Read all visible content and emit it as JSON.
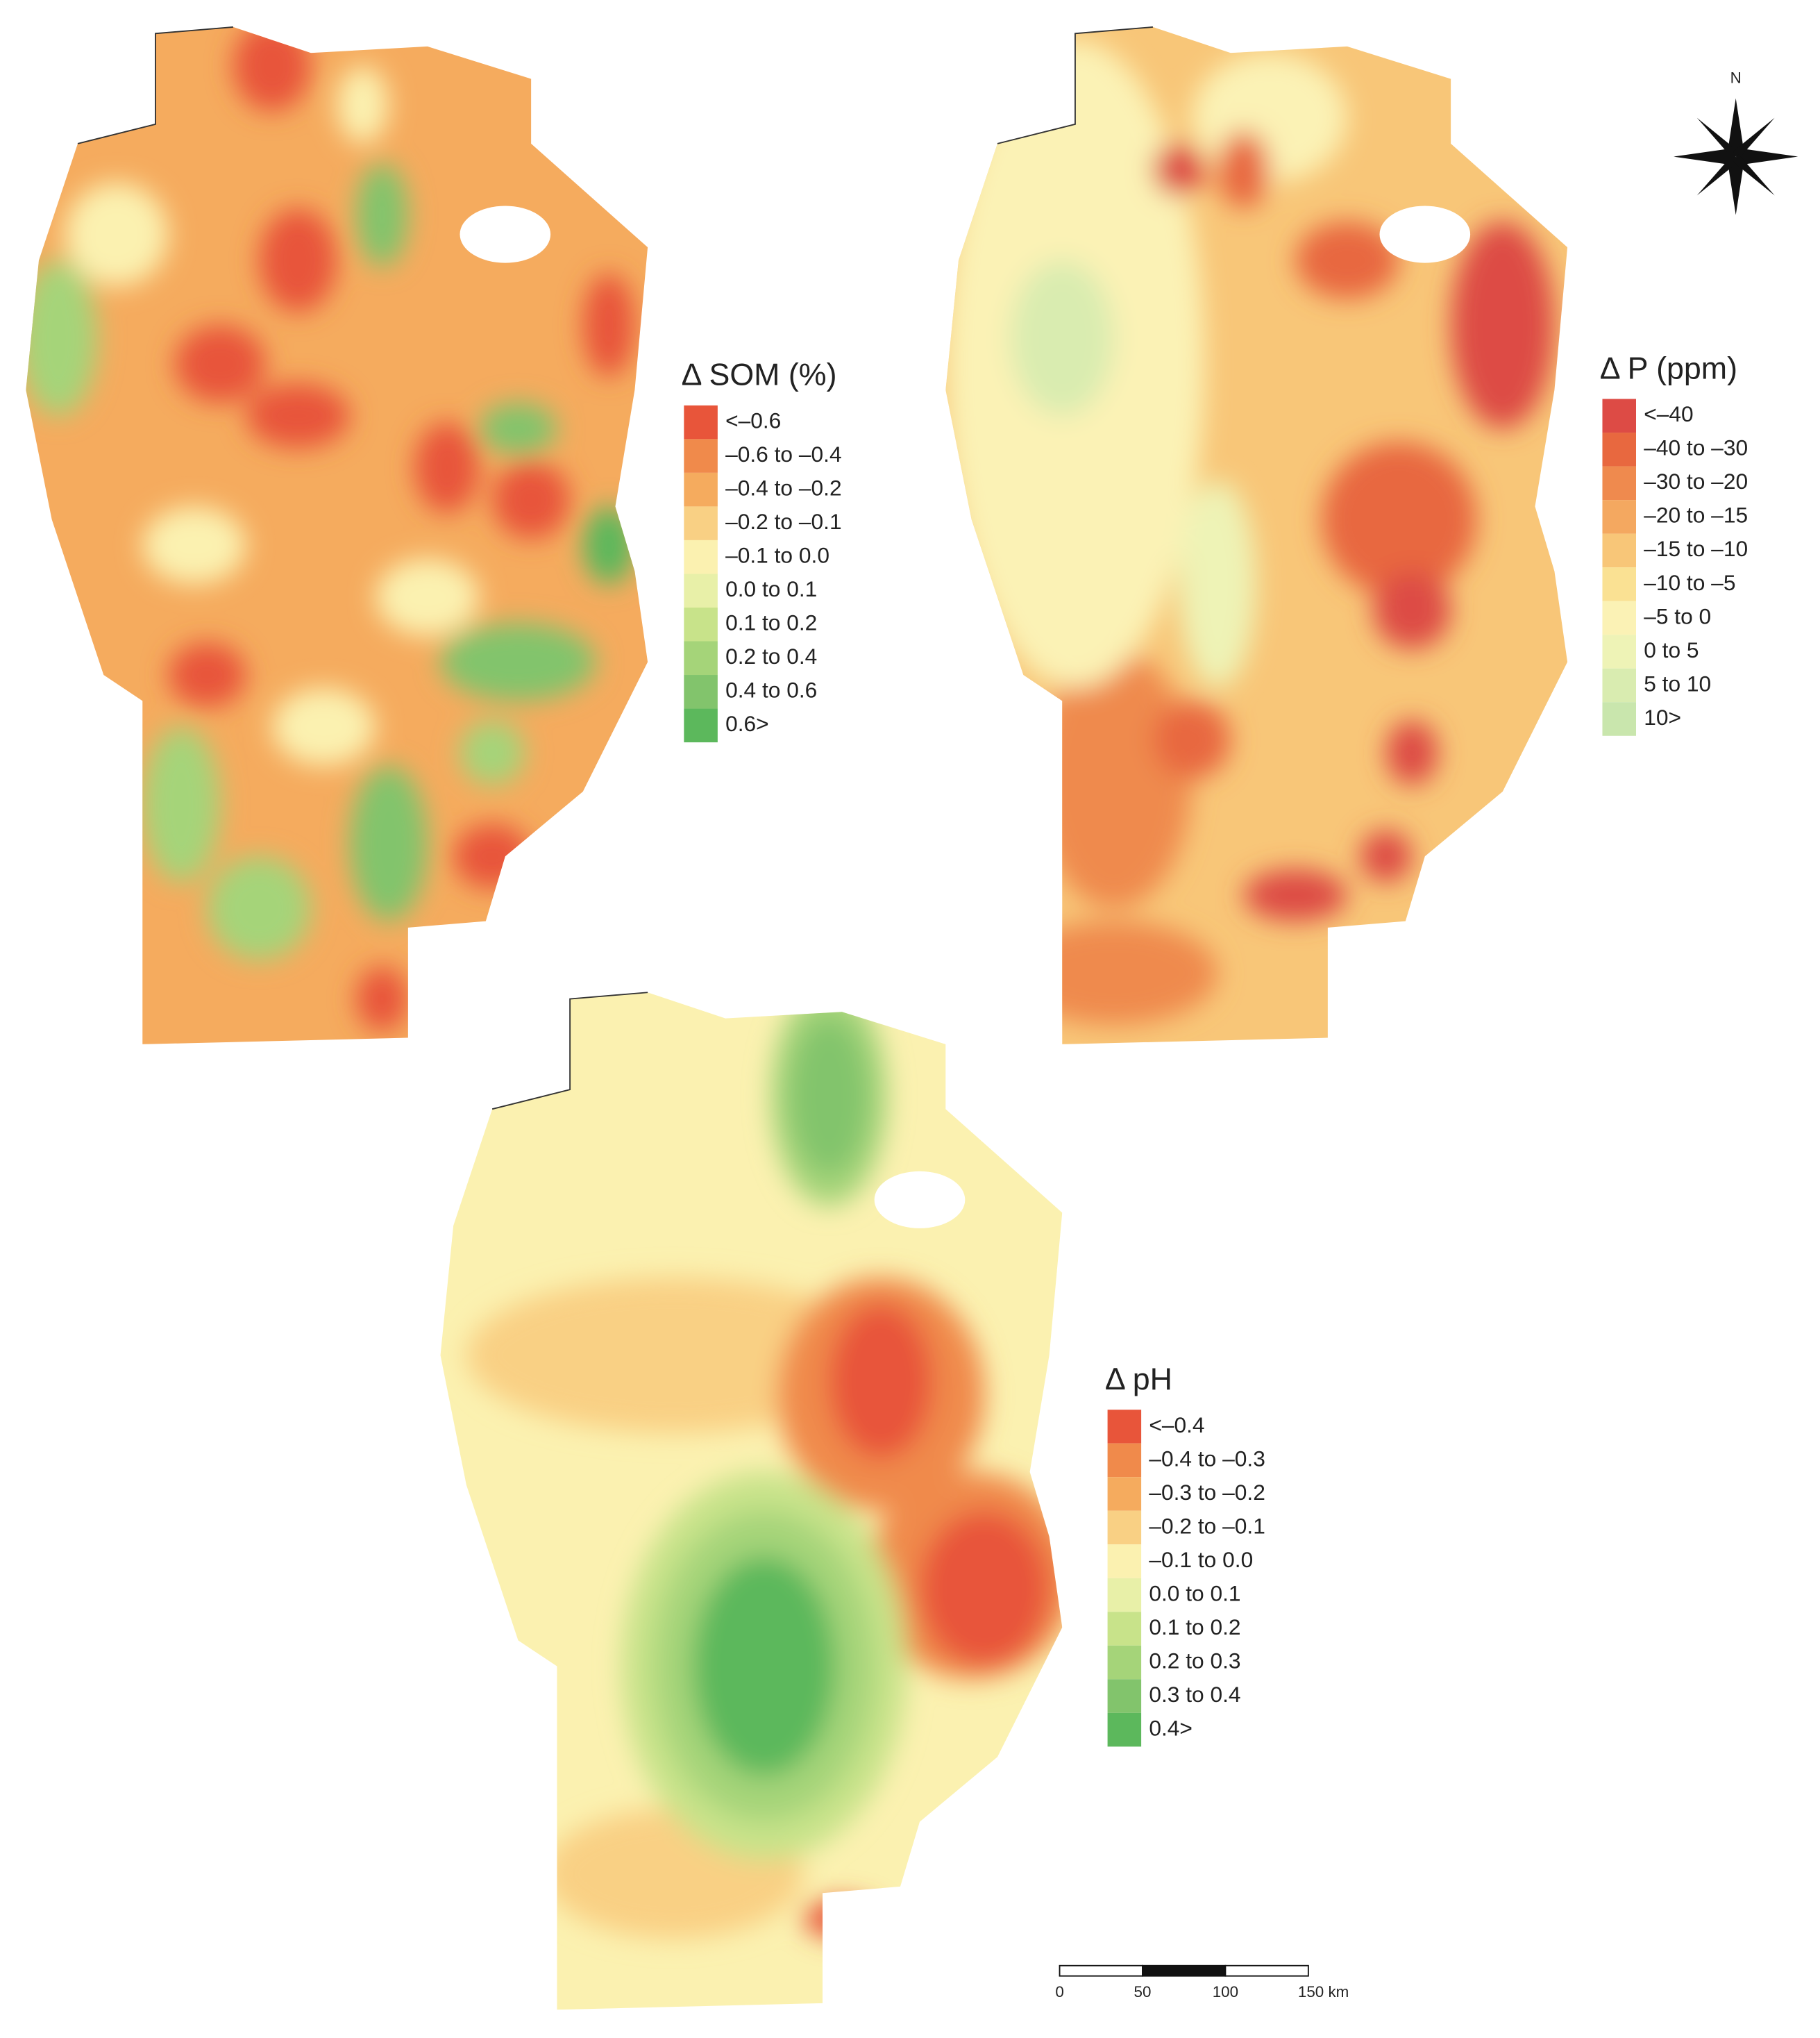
{
  "maps": [
    {
      "legend": {
        "title": "Δ SOM (%)",
        "classes": [
          {
            "label": "<–0.6",
            "color": "#e8553a"
          },
          {
            "label": "–0.6 to –0.4",
            "color": "#f08a4b"
          },
          {
            "label": "–0.4 to –0.2",
            "color": "#f5ab5e"
          },
          {
            "label": "–0.2 to –0.1",
            "color": "#f9d084"
          },
          {
            "label": "–0.1 to 0.0",
            "color": "#fbf1b0"
          },
          {
            "label": "0.0 to 0.1",
            "color": "#e8f0a8"
          },
          {
            "label": "0.1 to 0.2",
            "color": "#c8e38a"
          },
          {
            "label": "0.2 to 0.4",
            "color": "#a5d479"
          },
          {
            "label": "0.4 to 0.6",
            "color": "#82c46c"
          },
          {
            "label": "0.6>",
            "color": "#5cb85c"
          }
        ]
      }
    },
    {
      "legend": {
        "title": "Δ P (ppm)",
        "classes": [
          {
            "label": "<–40",
            "color": "#dd4b45"
          },
          {
            "label": "–40 to –30",
            "color": "#e8683f"
          },
          {
            "label": "–30 to –20",
            "color": "#ef8a4e"
          },
          {
            "label": "–20 to –15",
            "color": "#f4a860"
          },
          {
            "label": "–15 to –10",
            "color": "#f8c678"
          },
          {
            "label": "–10 to –5",
            "color": "#fae193"
          },
          {
            "label": "–5 to 0",
            "color": "#fbf2b5"
          },
          {
            "label": "0 to 5",
            "color": "#eef3b6"
          },
          {
            "label": "5 to 10",
            "color": "#d9ecb0"
          },
          {
            "label": "10>",
            "color": "#c9e6ad"
          }
        ]
      }
    },
    {
      "legend": {
        "title": "Δ pH",
        "classes": [
          {
            "label": "<–0.4",
            "color": "#e8553a"
          },
          {
            "label": "–0.4 to –0.3",
            "color": "#f08a4b"
          },
          {
            "label": "–0.3 to –0.2",
            "color": "#f5ab5e"
          },
          {
            "label": "–0.2 to –0.1",
            "color": "#f9d084"
          },
          {
            "label": "–0.1 to 0.0",
            "color": "#fbf1b0"
          },
          {
            "label": "0.0 to 0.1",
            "color": "#e8f0a8"
          },
          {
            "label": "0.1 to 0.2",
            "color": "#c8e38a"
          },
          {
            "label": "0.2 to 0.3",
            "color": "#a5d479"
          },
          {
            "label": "0.3 to 0.4",
            "color": "#82c46c"
          },
          {
            "label": "0.4>",
            "color": "#5cb85c"
          }
        ]
      }
    }
  ],
  "north_arrow": {
    "label": "N"
  },
  "scale_bar": {
    "labels": [
      "0",
      "50",
      "100",
      "150 km"
    ]
  }
}
